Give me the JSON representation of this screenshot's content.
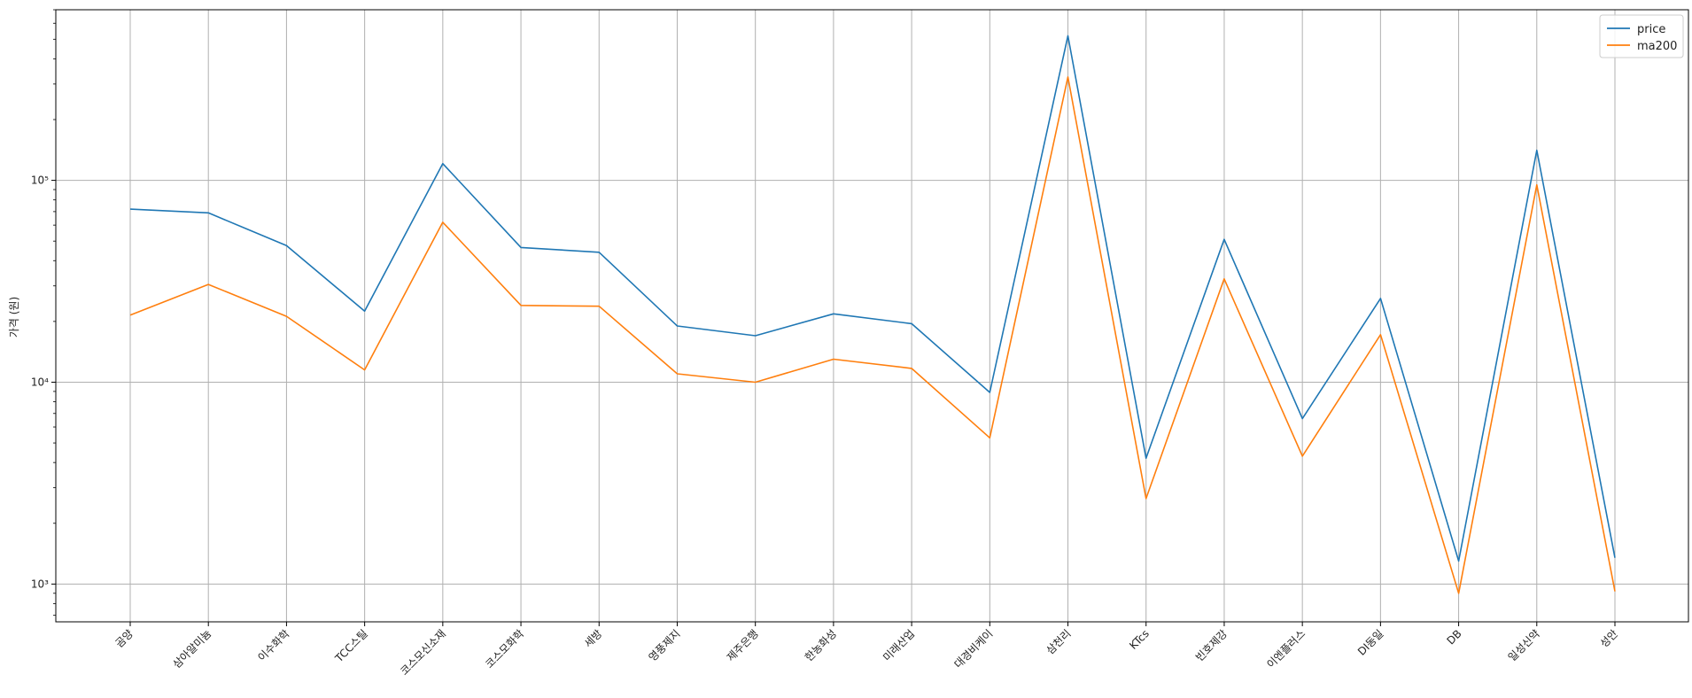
{
  "chart_data": {
    "type": "line",
    "categories": [
      "곰양",
      "삼아알미늄",
      "이수화학",
      "TCC스틸",
      "코스모신소재",
      "코스모화학",
      "세방",
      "영풍제지",
      "제주은행",
      "한농화성",
      "미래산업",
      "대경비케이",
      "삼천리",
      "KTcs",
      "빈호제강",
      "이엔플러스",
      "DI동일",
      "DB",
      "일성신약",
      "성안"
    ],
    "series": [
      {
        "name": "price",
        "color": "#1f77b4",
        "values": [
          72000,
          69000,
          47500,
          22500,
          121000,
          46500,
          44000,
          19000,
          17000,
          21800,
          19500,
          8900,
          520000,
          4200,
          51000,
          6600,
          26000,
          1300,
          141000,
          1350
        ]
      },
      {
        "name": "ma200",
        "color": "#ff7f0e",
        "values": [
          21500,
          30500,
          21200,
          11500,
          62000,
          24000,
          23800,
          11000,
          10000,
          13000,
          11700,
          5300,
          325000,
          2650,
          32500,
          4300,
          17200,
          900,
          95000,
          920
        ]
      }
    ],
    "ylabel": "가격 (원)",
    "yscale": "log",
    "ylim": [
      650,
      700000
    ],
    "yticks": [
      {
        "value": 1000,
        "label": "10³"
      },
      {
        "value": 10000,
        "label": "10⁴"
      },
      {
        "value": 100000,
        "label": "10⁵"
      }
    ],
    "grid": true,
    "legend_position": "top-right"
  }
}
